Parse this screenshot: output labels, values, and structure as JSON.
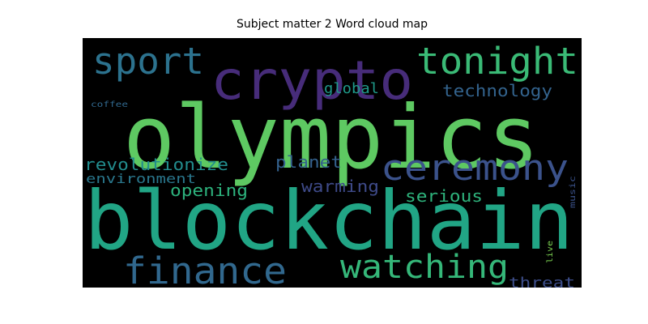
{
  "chart_data": {
    "type": "wordcloud",
    "title": "Subject matter 2 Word cloud map",
    "background": "#000000",
    "words": [
      {
        "text": "olympics",
        "weight": 1.0,
        "color": "#5ec962"
      },
      {
        "text": "blockchain",
        "weight": 0.95,
        "color": "#21a585"
      },
      {
        "text": "crypto",
        "weight": 0.62,
        "color": "#472c7a"
      },
      {
        "text": "tonight",
        "weight": 0.45,
        "color": "#3aba76"
      },
      {
        "text": "sport",
        "weight": 0.45,
        "color": "#2c728e"
      },
      {
        "text": "ceremony",
        "weight": 0.42,
        "color": "#3b528b"
      },
      {
        "text": "finance",
        "weight": 0.45,
        "color": "#31688e"
      },
      {
        "text": "watching",
        "weight": 0.38,
        "color": "#35b779"
      },
      {
        "text": "technology",
        "weight": 0.22,
        "color": "#33638d"
      },
      {
        "text": "global",
        "weight": 0.18,
        "color": "#1f9a8a"
      },
      {
        "text": "planet",
        "weight": 0.2,
        "color": "#34618d"
      },
      {
        "text": "revolutionize",
        "weight": 0.2,
        "color": "#228c8d"
      },
      {
        "text": "environment",
        "weight": 0.18,
        "color": "#2a788e"
      },
      {
        "text": "opening",
        "weight": 0.2,
        "color": "#2db27d"
      },
      {
        "text": "warming",
        "weight": 0.2,
        "color": "#3e4a89"
      },
      {
        "text": "serious",
        "weight": 0.2,
        "color": "#2eb37c"
      },
      {
        "text": "threat",
        "weight": 0.18,
        "color": "#3d4e8a"
      },
      {
        "text": "coffee",
        "weight": 0.1,
        "color": "#31688e"
      },
      {
        "text": "music",
        "weight": 0.1,
        "color": "#3b528b"
      },
      {
        "text": "live",
        "weight": 0.1,
        "color": "#7ad151"
      }
    ]
  }
}
